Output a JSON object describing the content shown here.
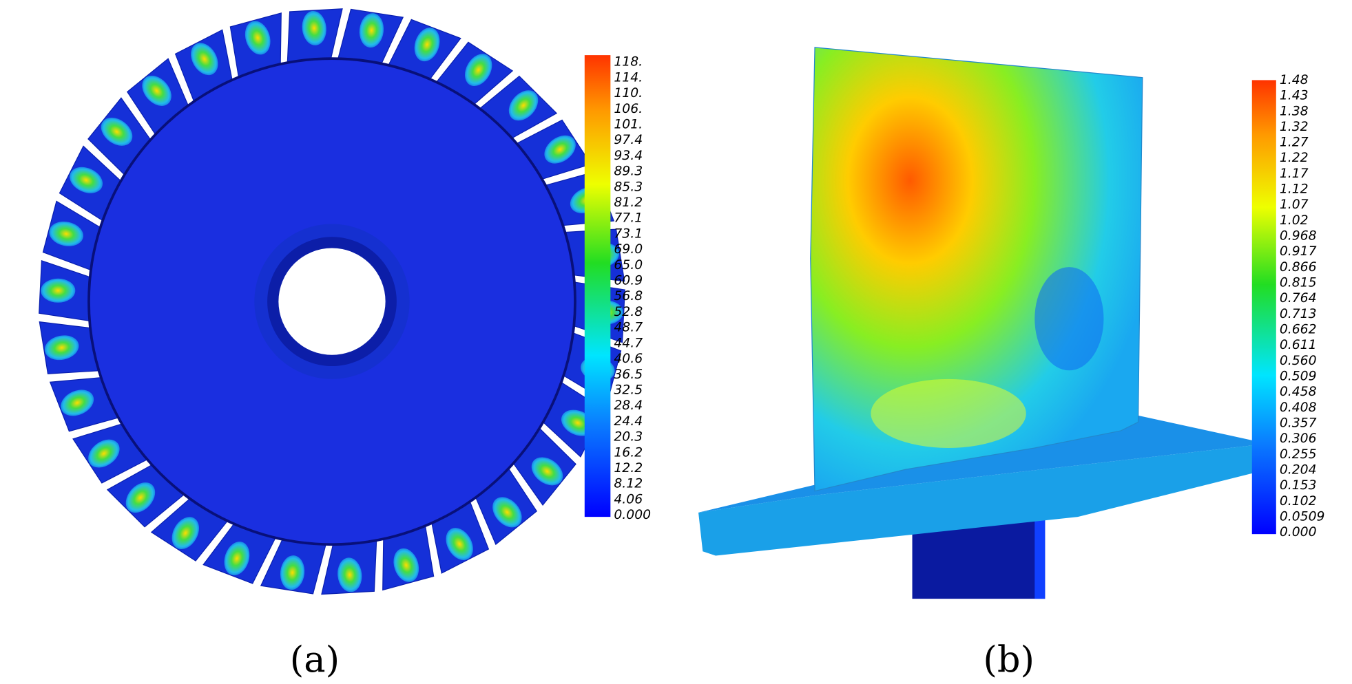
{
  "panels": [
    {
      "caption": "(a)",
      "colorbar": {
        "labels": [
          "118.",
          "114.",
          "110.",
          "106.",
          "101.",
          "97.4",
          "93.4",
          "89.3",
          "85.3",
          "81.2",
          "77.1",
          "73.1",
          "69.0",
          "65.0",
          "60.9",
          "56.8",
          "52.8",
          "48.7",
          "44.7",
          "40.6",
          "36.5",
          "32.5",
          "28.4",
          "24.4",
          "20.3",
          "16.2",
          "12.2",
          "8.12",
          "4.06",
          "0.000"
        ]
      }
    },
    {
      "caption": "(b)",
      "colorbar": {
        "labels": [
          "1.48",
          "1.43",
          "1.38",
          "1.32",
          "1.27",
          "1.22",
          "1.17",
          "1.12",
          "1.07",
          "1.02",
          "0.968",
          "0.917",
          "0.866",
          "0.815",
          "0.764",
          "0.713",
          "0.662",
          "0.611",
          "0.560",
          "0.509",
          "0.458",
          "0.408",
          "0.357",
          "0.306",
          "0.255",
          "0.204",
          "0.153",
          "0.102",
          "0.0509",
          "0.000"
        ]
      }
    }
  ]
}
